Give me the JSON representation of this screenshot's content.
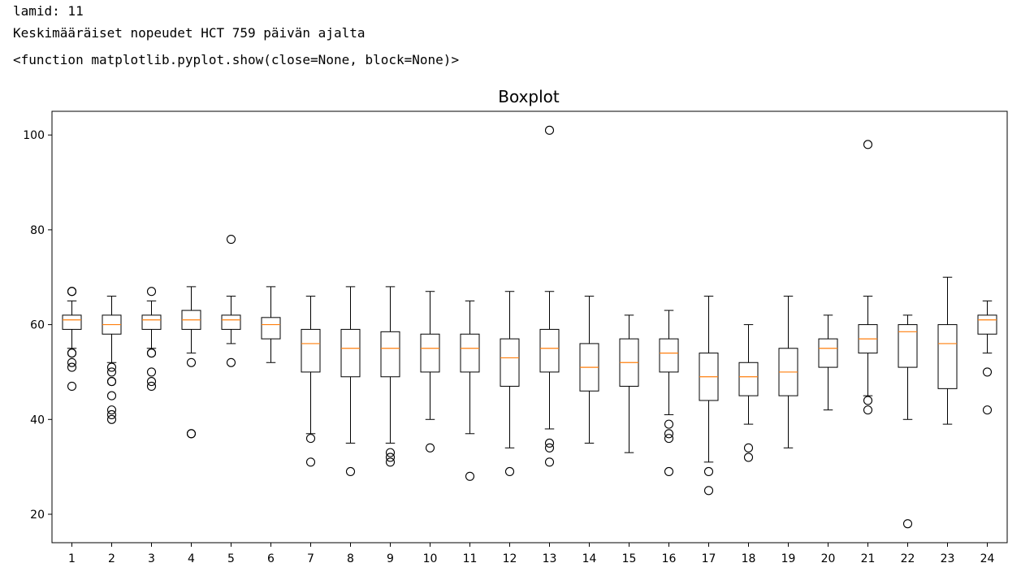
{
  "output": {
    "line1": "lamid: 11",
    "line2": "Keskimääräiset nopeudet HCT 759 päivän ajalta",
    "line3": "<function matplotlib.pyplot.show(close=None, block=None)>"
  },
  "colors": {
    "box": "#000000",
    "median": "#ff7f0e",
    "background": "#ffffff"
  },
  "chart_data": {
    "type": "boxplot",
    "title": "Boxplot",
    "xlabel": "",
    "ylabel": "",
    "ylim": [
      14,
      105
    ],
    "yticks": [
      20,
      40,
      60,
      80,
      100
    ],
    "grid": false,
    "boxes": [
      {
        "label": "1",
        "whislo": 55,
        "q1": 59,
        "med": 61,
        "q3": 62,
        "whishi": 65,
        "fliers": [
          67,
          67,
          54,
          54,
          52,
          51,
          47
        ]
      },
      {
        "label": "2",
        "whislo": 52,
        "q1": 58,
        "med": 60,
        "q3": 62,
        "whishi": 66,
        "fliers": [
          51,
          50,
          48,
          48,
          45,
          42,
          41,
          40
        ]
      },
      {
        "label": "3",
        "whislo": 55,
        "q1": 59,
        "med": 61,
        "q3": 62,
        "whishi": 65,
        "fliers": [
          67,
          54,
          54,
          50,
          48,
          47
        ]
      },
      {
        "label": "4",
        "whislo": 54,
        "q1": 59,
        "med": 61,
        "q3": 63,
        "whishi": 68,
        "fliers": [
          52,
          37,
          37
        ]
      },
      {
        "label": "5",
        "whislo": 56,
        "q1": 59,
        "med": 61,
        "q3": 62,
        "whishi": 66,
        "fliers": [
          78,
          52
        ]
      },
      {
        "label": "6",
        "whislo": 52,
        "q1": 57,
        "med": 60,
        "q3": 61.5,
        "whishi": 68,
        "fliers": []
      },
      {
        "label": "7",
        "whislo": 37,
        "q1": 50,
        "med": 56,
        "q3": 59,
        "whishi": 66,
        "fliers": [
          36,
          31
        ]
      },
      {
        "label": "8",
        "whislo": 35,
        "q1": 49,
        "med": 55,
        "q3": 59,
        "whishi": 68,
        "fliers": [
          29
        ]
      },
      {
        "label": "9",
        "whislo": 35,
        "q1": 49,
        "med": 55,
        "q3": 58.5,
        "whishi": 68,
        "fliers": [
          33,
          32,
          31
        ]
      },
      {
        "label": "10",
        "whislo": 40,
        "q1": 50,
        "med": 55,
        "q3": 58,
        "whishi": 67,
        "fliers": [
          34
        ]
      },
      {
        "label": "11",
        "whislo": 37,
        "q1": 50,
        "med": 55,
        "q3": 58,
        "whishi": 65,
        "fliers": [
          28
        ]
      },
      {
        "label": "12",
        "whislo": 34,
        "q1": 47,
        "med": 53,
        "q3": 57,
        "whishi": 67,
        "fliers": [
          29
        ]
      },
      {
        "label": "13",
        "whislo": 38,
        "q1": 50,
        "med": 55,
        "q3": 59,
        "whishi": 67,
        "fliers": [
          101,
          35,
          34,
          31
        ]
      },
      {
        "label": "14",
        "whislo": 35,
        "q1": 46,
        "med": 51,
        "q3": 56,
        "whishi": 66,
        "fliers": []
      },
      {
        "label": "15",
        "whislo": 33,
        "q1": 47,
        "med": 52,
        "q3": 57,
        "whishi": 62,
        "fliers": []
      },
      {
        "label": "16",
        "whislo": 41,
        "q1": 50,
        "med": 54,
        "q3": 57,
        "whishi": 63,
        "fliers": [
          39,
          37,
          36,
          29
        ]
      },
      {
        "label": "17",
        "whislo": 31,
        "q1": 44,
        "med": 49,
        "q3": 54,
        "whishi": 66,
        "fliers": [
          29,
          25
        ]
      },
      {
        "label": "18",
        "whislo": 39,
        "q1": 45,
        "med": 49,
        "q3": 52,
        "whishi": 60,
        "fliers": [
          34,
          32
        ]
      },
      {
        "label": "19",
        "whislo": 34,
        "q1": 45,
        "med": 50,
        "q3": 55,
        "whishi": 66,
        "fliers": []
      },
      {
        "label": "20",
        "whislo": 42,
        "q1": 51,
        "med": 55,
        "q3": 57,
        "whishi": 62,
        "fliers": []
      },
      {
        "label": "21",
        "whislo": 45,
        "q1": 54,
        "med": 57,
        "q3": 60,
        "whishi": 66,
        "fliers": [
          98,
          44,
          42
        ]
      },
      {
        "label": "22",
        "whislo": 40,
        "q1": 51,
        "med": 58.5,
        "q3": 60,
        "whishi": 62,
        "fliers": [
          18
        ]
      },
      {
        "label": "23",
        "whislo": 39,
        "q1": 46.5,
        "med": 56,
        "q3": 60,
        "whishi": 70,
        "fliers": []
      },
      {
        "label": "24",
        "whislo": 54,
        "q1": 58,
        "med": 61,
        "q3": 62,
        "whishi": 65,
        "fliers": [
          50,
          42
        ]
      }
    ]
  }
}
